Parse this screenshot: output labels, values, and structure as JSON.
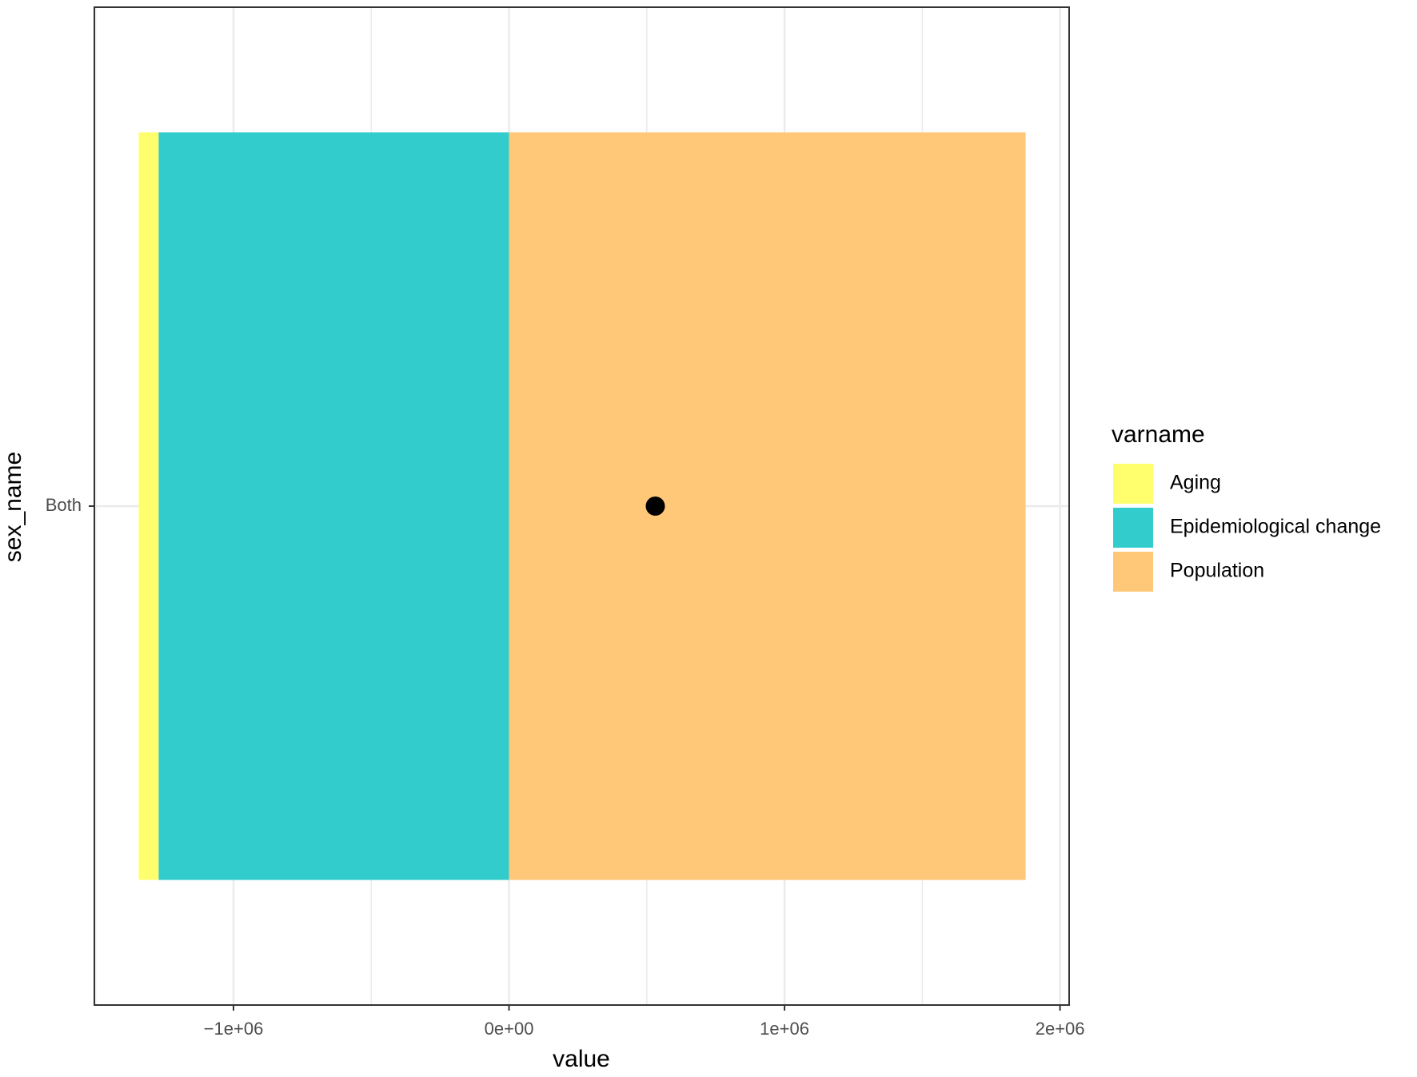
{
  "chart_data": {
    "type": "bar",
    "orientation": "horizontal",
    "stacked": true,
    "x_label": "value",
    "y_label": "sex_name",
    "legend_title": "varname",
    "legend_position": "right",
    "categories": [
      "Both"
    ],
    "series": [
      {
        "name": "Aging",
        "color": "#FFFF6D",
        "values": [
          -72000
        ]
      },
      {
        "name": "Epidemiological change",
        "color": "#33CCCC",
        "values": [
          -1272000
        ]
      },
      {
        "name": "Population",
        "color": "#FFC878",
        "values": [
          1875000
        ]
      }
    ],
    "points": {
      "color": "#000000",
      "values": [
        531000
      ]
    },
    "xlim": [
      -1505000,
      2033000
    ],
    "xticks": [
      {
        "value": -1000000,
        "label": "−1e+06"
      },
      {
        "value": 0,
        "label": "0e+00"
      },
      {
        "value": 1000000,
        "label": "1e+06"
      },
      {
        "value": 2000000,
        "label": "2e+06"
      }
    ],
    "grid": true
  }
}
